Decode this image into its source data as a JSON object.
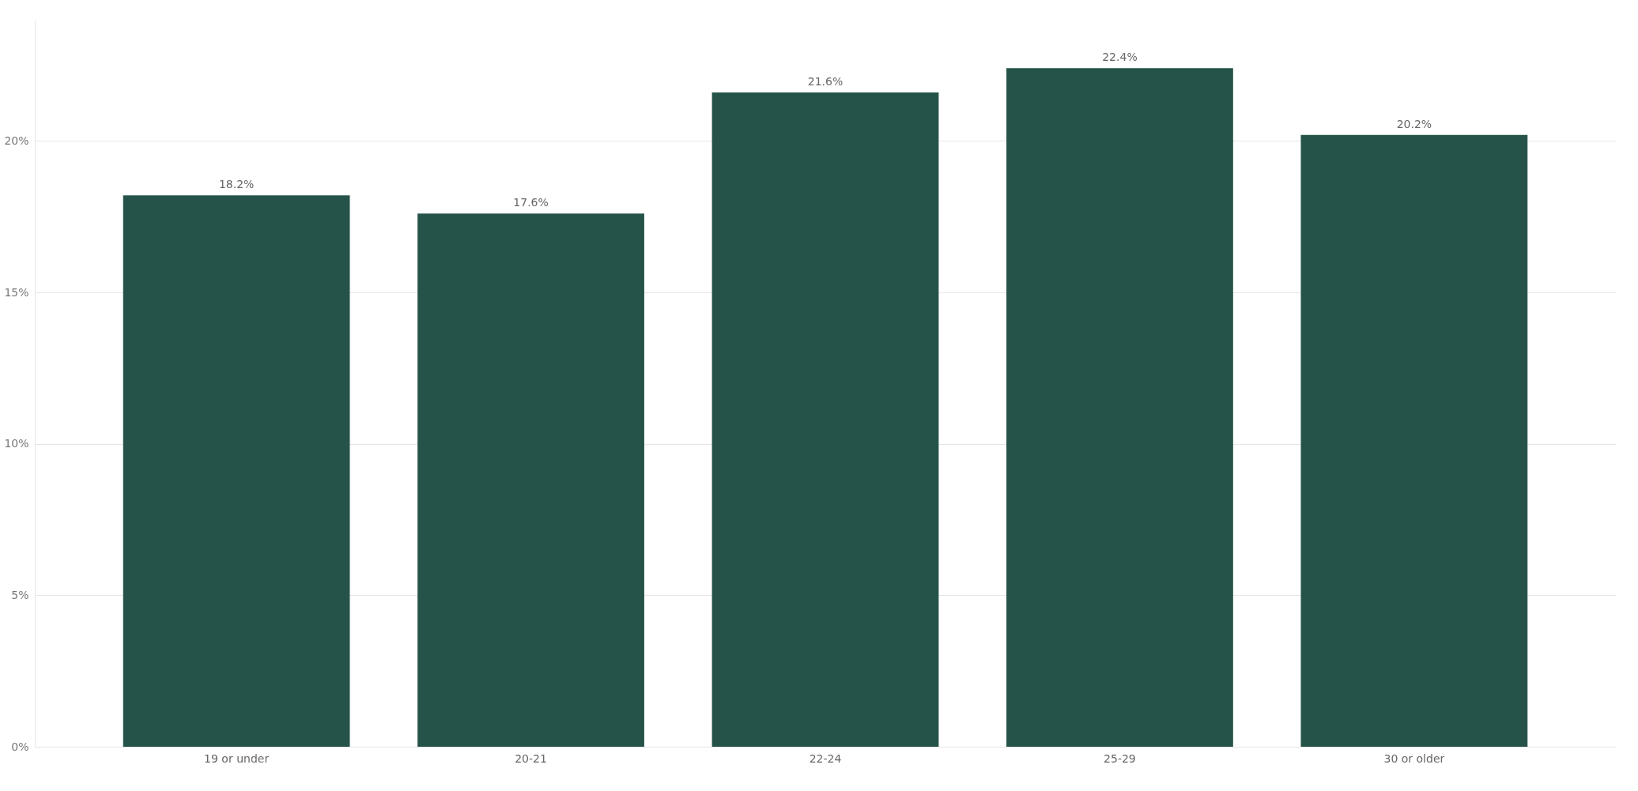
{
  "chart_data": {
    "type": "bar",
    "categories": [
      "19 or under",
      "20-21",
      "22-24",
      "25-29",
      "30 or older"
    ],
    "values": [
      18.2,
      17.6,
      21.6,
      22.4,
      20.2
    ],
    "value_labels": [
      "18.2%",
      "17.6%",
      "21.6%",
      "22.4%",
      "20.2%"
    ],
    "color": "#25534a",
    "ylim": [
      0,
      24
    ],
    "yticks": [
      {
        "value": 0,
        "label": "0%"
      },
      {
        "value": 5,
        "label": "5%"
      },
      {
        "value": 10,
        "label": "10%"
      },
      {
        "value": 15,
        "label": "15%"
      },
      {
        "value": 20,
        "label": "20%"
      }
    ],
    "grid": "y"
  }
}
